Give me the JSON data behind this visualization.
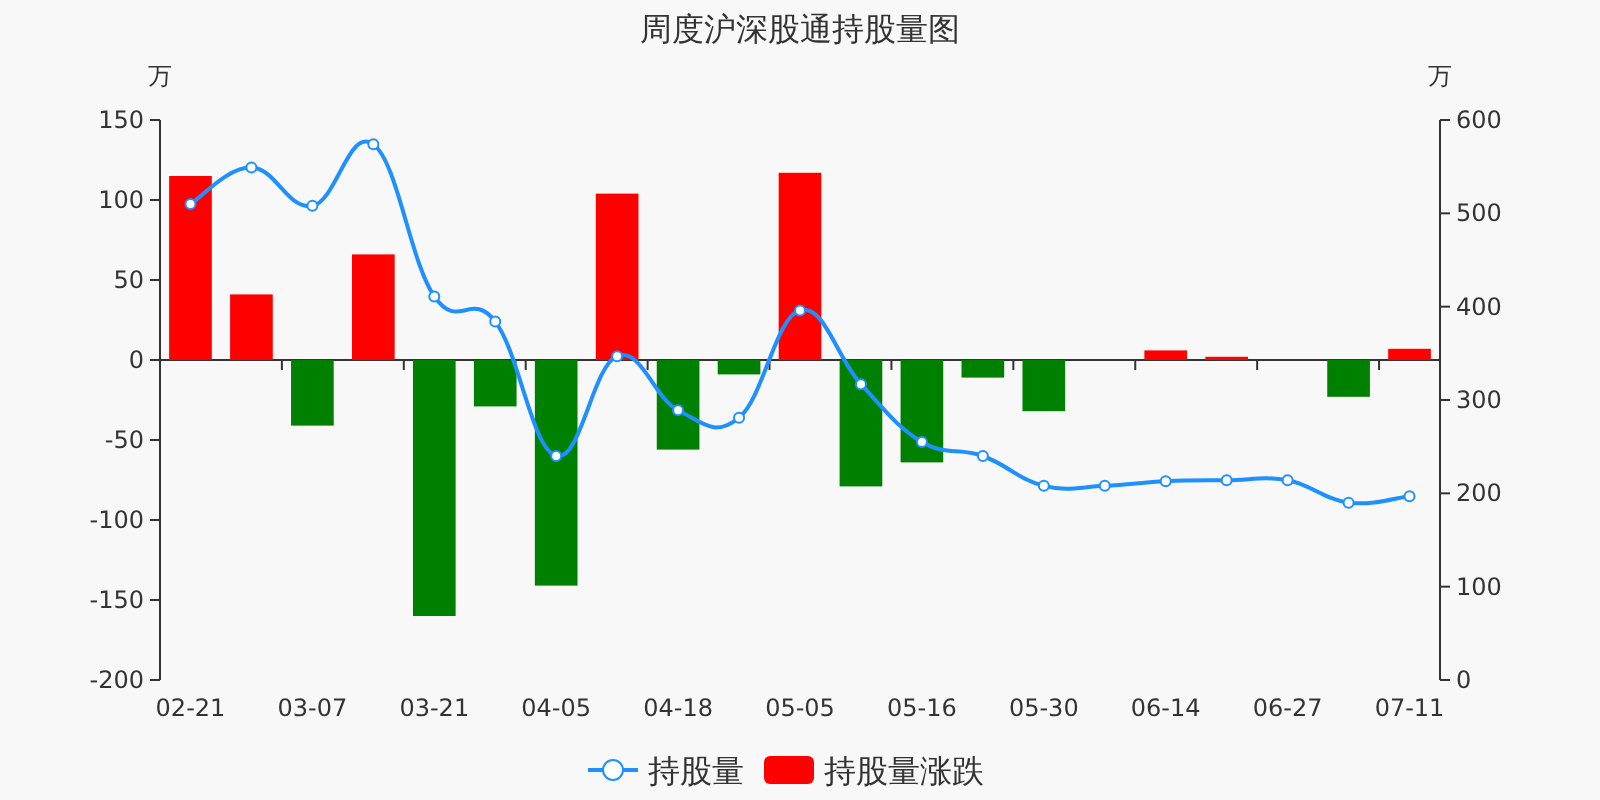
{
  "chart_data": {
    "type": "bar",
    "title": "周度沪深股通持股量图",
    "ylabel": "万",
    "y2label": "万",
    "categories": [
      "02-21",
      null,
      "03-07",
      null,
      "03-21",
      null,
      "04-05",
      null,
      "04-18",
      null,
      "05-05",
      null,
      "05-16",
      null,
      "05-30",
      null,
      "06-14",
      null,
      "06-27",
      null,
      "07-11"
    ],
    "series": [
      {
        "name": "持股量",
        "type": "line",
        "axis": "y2",
        "color": "#1e90ff",
        "marker": "circle",
        "values": [
          510,
          549,
          508,
          574,
          411,
          384,
          240,
          347,
          289,
          281,
          396,
          317,
          255,
          240,
          208,
          208,
          213,
          214,
          214,
          190,
          197
        ]
      },
      {
        "name": "持股量涨跌",
        "color": "#ff0000",
        "colors": [
          "#ff0000",
          "#ff0000",
          "#008000",
          "#ff0000",
          "#008000",
          "#008000",
          "#008000",
          "#ff0000",
          "#008000",
          "#008000",
          "#ff0000",
          "#008000",
          "#008000",
          "#008000",
          "#008000",
          "#ff0000",
          "#ff0000",
          "#ff0000",
          "#ff0000",
          "#008000",
          "#ff0000"
        ],
        "values": [
          115,
          41,
          -41,
          66,
          -160,
          -29,
          -141,
          104,
          -56,
          -9,
          117,
          -79,
          -64,
          -11,
          -32,
          0,
          6,
          2,
          0,
          -23,
          7
        ]
      }
    ],
    "ylim": [
      -200,
      150
    ],
    "yticks": [
      -200,
      -150,
      -100,
      -50,
      0,
      50,
      100,
      150
    ],
    "y2lim": [
      0,
      600
    ],
    "y2ticks": [
      0,
      100,
      200,
      300,
      400,
      500,
      600
    ],
    "legend": "bottom"
  }
}
